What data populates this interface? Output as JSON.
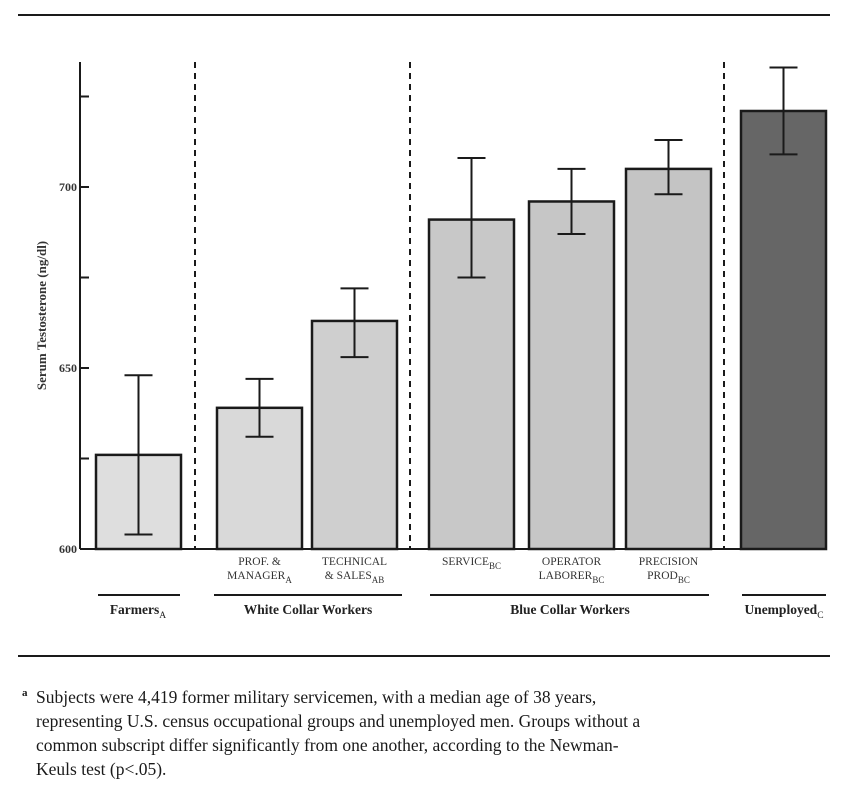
{
  "chart_data": {
    "type": "bar",
    "ylabel": "Serum  Testosterone  (ng/dl)",
    "ylim": [
      600,
      737
    ],
    "yticks": [
      600,
      650,
      700
    ],
    "grid": false,
    "bars": [
      {
        "label": [
          "",
          ""
        ],
        "subscript": "",
        "value": 626,
        "err_low": 604,
        "err_high": 648,
        "color": "#dedede"
      },
      {
        "label": [
          "PROF. &",
          "MANAGER"
        ],
        "subscript": "A",
        "value": 639,
        "err_low": 631,
        "err_high": 647,
        "color": "#d9d9d9"
      },
      {
        "label": [
          "TECHNICAL",
          "& SALES"
        ],
        "subscript": "AB",
        "value": 663,
        "err_low": 653,
        "err_high": 672,
        "color": "#cfcfcf"
      },
      {
        "label": [
          "SERVICE",
          ""
        ],
        "subscript": "BC",
        "value": 691,
        "err_low": 675,
        "err_high": 708,
        "color": "#c8c8c8"
      },
      {
        "label": [
          "OPERATOR",
          "LABORER"
        ],
        "subscript": "BC",
        "value": 696,
        "err_low": 687,
        "err_high": 705,
        "color": "#c6c6c6"
      },
      {
        "label": [
          "PRECISION",
          "PROD"
        ],
        "subscript": "BC",
        "value": 705,
        "err_low": 698,
        "err_high": 713,
        "color": "#c4c4c4"
      },
      {
        "label": [
          "",
          ""
        ],
        "subscript": "",
        "value": 721,
        "err_low": 709,
        "err_high": 733,
        "color": "#666666"
      }
    ],
    "groups": [
      {
        "name": "Farmers",
        "subscript": "A"
      },
      {
        "name": "White Collar Workers",
        "subscript": ""
      },
      {
        "name": "Blue Collar Workers",
        "subscript": ""
      },
      {
        "name": "Unemployed",
        "subscript": "C"
      }
    ]
  },
  "footnote": {
    "marker": "a",
    "lines": [
      "Subjects were 4,419 former military servicemen, with a median age of 38 years,",
      "representing U.S. census occupational groups and unemployed men. Groups without a",
      "common subscript differ significantly from one another, according to the Newman-",
      "Keuls test (p<.05)."
    ]
  }
}
